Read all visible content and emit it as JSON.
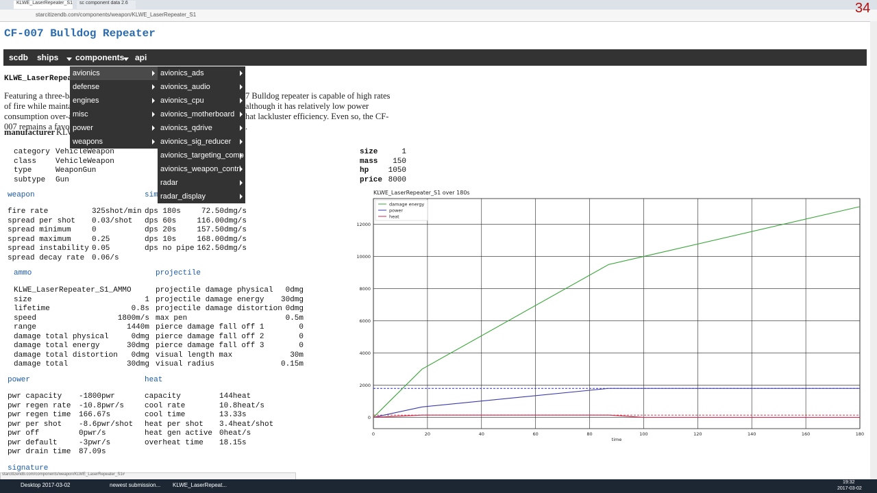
{
  "browser": {
    "tabs": [
      "KLWE_LaserRepeater_S1",
      "sc component data 2.6"
    ],
    "url": "starcitizendb.com/components/weapon/KLWE_LaserRepeater_S1",
    "counter": "34"
  },
  "header": {
    "title": "CF-007 Bulldog Repeater"
  },
  "nav": [
    "scdb",
    "ships",
    "components",
    "api"
  ],
  "menu": {
    "categories": [
      "avionics",
      "defense",
      "engines",
      "misc",
      "power",
      "weapons"
    ],
    "submenu": [
      "avionics_ads",
      "avionics_audio",
      "avionics_cpu",
      "avionics_motherboard",
      "avionics_qdrive",
      "avionics_sig_reducer",
      "avionics_targeting_comp",
      "avionics_weapon_contrl",
      "radar",
      "radar_display"
    ]
  },
  "component": {
    "id": "KLWE_LaserRepeater_S1",
    "description": [
      [
        "Featuring a three-ba",
        "7 Bulldog repeater is capable of high rates"
      ],
      [
        "of fire while maintai",
        "although it has relatively low power"
      ],
      [
        "consumption over-a",
        "hat lackluster efficiency. Even so, the CF-"
      ],
      [
        "007 remains a favor",
        "."
      ]
    ],
    "manufacturer": {
      "label": "manufacturer",
      "value": "KLWE"
    }
  },
  "info_left": [
    [
      "category",
      "VehicleWeapon"
    ],
    [
      "class",
      "VehicleWeapon"
    ],
    [
      "type",
      "WeaponGun"
    ],
    [
      "subtype",
      "Gun"
    ]
  ],
  "info_right": [
    [
      "size",
      "1"
    ],
    [
      "mass",
      "150"
    ],
    [
      "hp",
      "1050"
    ],
    [
      "price",
      "8000"
    ]
  ],
  "sections": [
    {
      "title": "weapon",
      "rows": [
        [
          "fire rate",
          "325shot/min"
        ],
        [
          "spread per shot",
          "0.03/shot"
        ],
        [
          "spread minimum",
          "0"
        ],
        [
          "spread maximum",
          "0.25"
        ],
        [
          "spread instability",
          "0.05"
        ],
        [
          "spread decay rate",
          "0.06/s"
        ]
      ]
    },
    {
      "title": "sim",
      "rows": [
        [
          "dps 180s",
          "72.50dmg/s"
        ],
        [
          "dps 60s",
          "116.00dmg/s"
        ],
        [
          "dps 20s",
          "157.50dmg/s"
        ],
        [
          "dps 10s",
          "168.00dmg/s"
        ],
        [
          "dps no pipe",
          "162.50dmg/s"
        ]
      ]
    },
    {
      "title": "ammo",
      "rows": [
        [
          "KLWE_LaserRepeater_S1_AMMO",
          ""
        ],
        [
          "size",
          "1"
        ],
        [
          "lifetime",
          "0.8s"
        ],
        [
          "speed",
          "1800m/s"
        ],
        [
          "range",
          "1440m"
        ],
        [
          "damage total physical",
          "0dmg"
        ],
        [
          "damage total energy",
          "30dmg"
        ],
        [
          "damage total distortion",
          "0dmg"
        ],
        [
          "damage total",
          "30dmg"
        ]
      ]
    },
    {
      "title": "projectile",
      "rows": [
        [
          "projectile damage physical",
          "0dmg"
        ],
        [
          "projectile damage energy",
          "30dmg"
        ],
        [
          "projectile damage distortion",
          "0dmg"
        ],
        [
          "max pen",
          "0.5m"
        ],
        [
          "pierce damage fall off 1",
          "0"
        ],
        [
          "pierce damage fall off 2",
          "0"
        ],
        [
          "pierce damage fall off 3",
          "0"
        ],
        [
          "visual length max",
          "30m"
        ],
        [
          "visual radius",
          "0.15m"
        ]
      ]
    },
    {
      "title": "power",
      "rows": [
        [
          "pwr capacity",
          "-1800pwr"
        ],
        [
          "pwr regen rate",
          "-10.8pwr/s"
        ],
        [
          "pwr regen time",
          "166.67s"
        ],
        [
          "pwr per shot",
          "-8.6pwr/shot"
        ],
        [
          "pwr off",
          "0pwr/s"
        ],
        [
          "pwr default",
          "-3pwr/s"
        ],
        [
          "pwr drain time",
          "87.09s"
        ]
      ]
    },
    {
      "title": "heat",
      "rows": [
        [
          "capacity",
          "144heat"
        ],
        [
          "cool rate",
          "10.8heat/s"
        ],
        [
          "cool time",
          "13.33s"
        ],
        [
          "heat per shot",
          "3.4heat/shot"
        ],
        [
          "heat gen active",
          "0heat/s"
        ],
        [
          "overheat time",
          "18.15s"
        ]
      ]
    },
    {
      "title": "signature",
      "rows": []
    }
  ],
  "chart_data": {
    "type": "line",
    "title": "KLWE_LaserRepeater_S1 over 180s",
    "x_label": "time",
    "x": [
      0,
      18,
      87,
      100,
      180
    ],
    "series": [
      {
        "name": "damage energy",
        "color": "#3aa63a",
        "values": [
          0,
          3000,
          9500,
          10000,
          13100
        ]
      },
      {
        "name": "power",
        "color": "#3a3aaa",
        "values": [
          0,
          650,
          1800,
          1800,
          1800
        ]
      },
      {
        "name": "heat",
        "color": "#cc2a4a",
        "values": [
          0,
          144,
          144,
          0,
          0
        ]
      }
    ],
    "reference_lines": [
      {
        "value": 1800,
        "color": "#2a2acc"
      },
      {
        "value": 144,
        "color": "#dd2233"
      }
    ],
    "xlim": [
      0,
      180
    ],
    "ylim": [
      -700,
      13600
    ],
    "xticks": [
      0,
      20,
      40,
      60,
      80,
      100,
      120,
      140,
      160,
      180
    ],
    "yticks": [
      0,
      2000,
      4000,
      6000,
      8000,
      10000,
      12000
    ],
    "grid": true,
    "legend": "upper left"
  },
  "status_url": "starcitizendb.com/components/weapon/KLWE_LaserRepeater_S1#",
  "taskbar": {
    "items": [
      "Desktop 2017-03-02",
      "newest submission...",
      "KLWE_LaserRepeat..."
    ],
    "time": "19:32",
    "date": "2017-03-02"
  }
}
